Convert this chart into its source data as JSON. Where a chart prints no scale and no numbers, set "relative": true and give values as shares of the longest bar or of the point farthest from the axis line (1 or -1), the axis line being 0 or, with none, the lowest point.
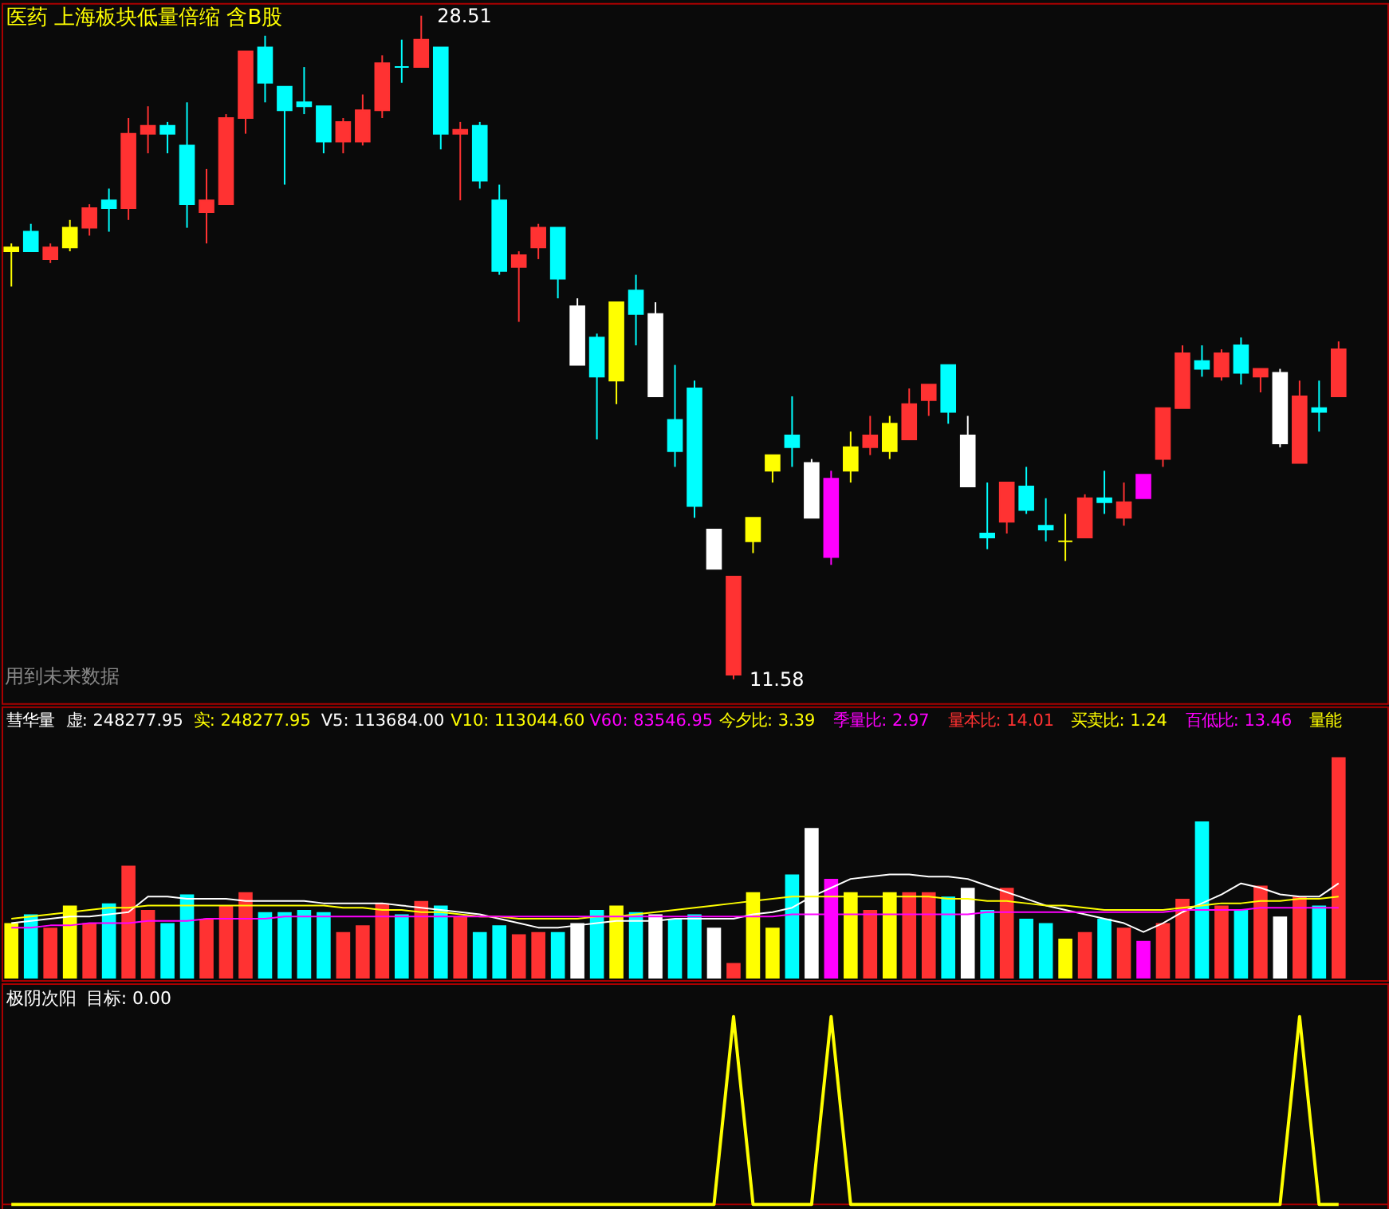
{
  "chart_data": [
    {
      "type": "candlestick",
      "title": "医药 上海板块低量倍缩 含B股",
      "categories": [
        null,
        null,
        null,
        null,
        null,
        null,
        null,
        null,
        null,
        null,
        null,
        null,
        null,
        null,
        null,
        null,
        null,
        null,
        null,
        null,
        null,
        null,
        null,
        null,
        null,
        null,
        null,
        null,
        null,
        null,
        null,
        null,
        null,
        null,
        null,
        null,
        null,
        null,
        null,
        null,
        null,
        null,
        null,
        null,
        null,
        null,
        null,
        null,
        null,
        null,
        null,
        null,
        null,
        null,
        null,
        null,
        null,
        null,
        null,
        null,
        null,
        null,
        null,
        null,
        null,
        null,
        null,
        null,
        null
      ],
      "ohlc": [
        [
          22.6,
          22.7,
          21.6,
          22.5
        ],
        [
          23.0,
          23.2,
          22.5,
          22.5
        ],
        [
          22.3,
          22.7,
          22.2,
          22.6
        ],
        [
          22.6,
          23.3,
          22.5,
          23.1
        ],
        [
          23.1,
          23.7,
          22.9,
          23.6
        ],
        [
          23.8,
          24.1,
          23.0,
          23.6
        ],
        [
          23.6,
          25.9,
          23.3,
          25.5
        ],
        [
          25.5,
          26.2,
          25.0,
          25.7
        ],
        [
          25.7,
          25.8,
          25.0,
          25.5
        ],
        [
          25.2,
          26.3,
          23.1,
          23.7
        ],
        [
          23.5,
          24.6,
          22.7,
          23.8
        ],
        [
          23.7,
          26.0,
          23.7,
          25.9
        ],
        [
          25.9,
          27.6,
          25.5,
          27.6
        ],
        [
          27.7,
          28.0,
          26.3,
          26.8
        ],
        [
          26.7,
          26.7,
          24.2,
          26.1
        ],
        [
          26.3,
          27.2,
          26.0,
          26.2
        ],
        [
          26.2,
          26.2,
          25.0,
          25.3
        ],
        [
          25.3,
          25.9,
          25.0,
          25.8
        ],
        [
          25.3,
          26.5,
          25.2,
          26.1
        ],
        [
          26.1,
          27.5,
          25.9,
          27.3
        ],
        [
          27.2,
          27.9,
          26.8,
          27.2
        ],
        [
          27.2,
          28.51,
          27.2,
          27.9
        ],
        [
          27.7,
          27.7,
          25.1,
          25.5
        ],
        [
          25.5,
          25.8,
          23.8,
          25.6
        ],
        [
          25.7,
          25.8,
          24.1,
          24.3
        ],
        [
          23.8,
          24.2,
          21.9,
          22.0
        ],
        [
          22.1,
          22.5,
          20.7,
          22.4
        ],
        [
          22.6,
          23.2,
          22.3,
          23.1
        ],
        [
          23.1,
          23.1,
          21.3,
          21.8
        ],
        [
          21.1,
          21.3,
          19.6,
          19.6
        ],
        [
          20.3,
          20.4,
          17.7,
          19.3
        ],
        [
          21.2,
          21.2,
          18.6,
          19.2
        ],
        [
          21.5,
          21.9,
          20.1,
          20.9
        ],
        [
          20.9,
          21.2,
          18.8,
          18.8
        ],
        [
          18.2,
          19.6,
          17.0,
          17.4
        ],
        [
          19.0,
          19.2,
          15.7,
          16.0
        ],
        [
          15.4,
          15.4,
          14.4,
          14.4
        ],
        [
          11.7,
          14.2,
          11.58,
          14.2
        ],
        [
          15.7,
          15.7,
          14.8,
          15.1
        ],
        [
          17.3,
          17.3,
          16.6,
          16.9
        ],
        [
          17.8,
          18.8,
          17.0,
          17.5
        ],
        [
          17.1,
          17.2,
          15.7,
          15.7
        ],
        [
          16.7,
          16.9,
          14.5,
          14.7
        ],
        [
          16.9,
          17.9,
          16.6,
          17.5
        ],
        [
          17.5,
          18.3,
          17.3,
          17.8
        ],
        [
          17.4,
          18.3,
          17.2,
          18.1
        ],
        [
          17.7,
          19.0,
          17.7,
          18.6
        ],
        [
          18.7,
          19.1,
          18.3,
          19.1
        ],
        [
          19.6,
          19.6,
          18.1,
          18.4
        ],
        [
          17.8,
          18.3,
          16.5,
          16.5
        ],
        [
          15.3,
          16.6,
          14.9,
          15.2
        ],
        [
          15.6,
          16.6,
          15.3,
          16.6
        ],
        [
          16.5,
          17.0,
          15.8,
          15.9
        ],
        [
          15.5,
          16.2,
          15.1,
          15.4
        ],
        [
          15.1,
          15.8,
          14.6,
          15.1
        ],
        [
          15.2,
          16.3,
          15.2,
          16.2
        ],
        [
          16.2,
          16.9,
          15.8,
          16.1
        ],
        [
          15.7,
          16.6,
          15.5,
          16.1
        ],
        [
          16.2,
          16.8,
          16.2,
          16.8
        ],
        [
          17.2,
          18.5,
          17.0,
          18.5
        ],
        [
          18.5,
          20.1,
          18.5,
          19.9
        ],
        [
          19.7,
          20.1,
          19.3,
          19.5
        ],
        [
          19.3,
          20.0,
          19.2,
          19.9
        ],
        [
          20.1,
          20.3,
          19.1,
          19.4
        ],
        [
          19.3,
          19.5,
          18.9,
          19.5
        ],
        [
          19.4,
          19.5,
          17.5,
          17.6
        ],
        [
          17.1,
          19.2,
          17.1,
          18.8
        ],
        [
          18.5,
          19.2,
          17.9,
          18.4
        ],
        [
          18.8,
          20.2,
          18.8,
          20.0
        ]
      ],
      "colors": [
        "#ffff00",
        "#00ffff",
        "#ff3232",
        "#ffff00",
        "#ff3232",
        "#00ffff",
        "#ff3232",
        "#ff3232",
        "#00ffff",
        "#00ffff",
        "#ff3232",
        "#ff3232",
        "#ff3232",
        "#00ffff",
        "#00ffff",
        "#00ffff",
        "#00ffff",
        "#ff3232",
        "#ff3232",
        "#ff3232",
        "#00ffff",
        "#ff3232",
        "#00ffff",
        "#ff3232",
        "#00ffff",
        "#00ffff",
        "#ff3232",
        "#ff3232",
        "#00ffff",
        "#ffffff",
        "#00ffff",
        "#ffff00",
        "#00ffff",
        "#ffffff",
        "#00ffff",
        "#00ffff",
        "#ffffff",
        "#ff3232",
        "#ffff00",
        "#ffff00",
        "#00ffff",
        "#ffffff",
        "#ff00ff",
        "#ffff00",
        "#ff3232",
        "#ffff00",
        "#ff3232",
        "#ff3232",
        "#00ffff",
        "#ffffff",
        "#00ffff",
        "#ff3232",
        "#00ffff",
        "#00ffff",
        "#ffff00",
        "#ff3232",
        "#00ffff",
        "#ff3232",
        "#ff00ff",
        "#ff3232",
        "#ff3232",
        "#00ffff",
        "#ff3232",
        "#00ffff",
        "#ff3232",
        "#ffffff",
        "#ff3232",
        "#00ffff",
        "#ff3232"
      ],
      "annotations": [
        "用到未来数据",
        "28.51",
        "11.58"
      ]
    },
    {
      "type": "bar",
      "relative": true,
      "title": "彗华量",
      "annotations": [
        "虚: 248277.95",
        "实: 248277.95",
        "V5: 113684.00",
        "V10: 113044.60",
        "V60: 83546.95",
        "今夕比: 3.39",
        "季量比: 2.97",
        "量本比: 14.01",
        "买卖比: 1.24",
        "百低比: 13.46",
        "量能"
      ],
      "categories": [
        null,
        null,
        null,
        null,
        null,
        null,
        null,
        null,
        null,
        null,
        null,
        null,
        null,
        null,
        null,
        null,
        null,
        null,
        null,
        null,
        null,
        null,
        null,
        null,
        null,
        null,
        null,
        null,
        null,
        null,
        null,
        null,
        null,
        null,
        null,
        null,
        null,
        null,
        null,
        null,
        null,
        null,
        null,
        null,
        null,
        null,
        null,
        null,
        null,
        null,
        null,
        null,
        null,
        null,
        null,
        null,
        null,
        null,
        null,
        null,
        null,
        null,
        null,
        null,
        null,
        null,
        null,
        null,
        null
      ],
      "series": [
        {
          "type": "bar",
          "colors": [
            "#ffff00",
            "#00ffff",
            "#ff3232",
            "#ffff00",
            "#ff3232",
            "#00ffff",
            "#ff3232",
            "#ff3232",
            "#00ffff",
            "#00ffff",
            "#ff3232",
            "#ff3232",
            "#ff3232",
            "#00ffff",
            "#00ffff",
            "#00ffff",
            "#00ffff",
            "#ff3232",
            "#ff3232",
            "#ff3232",
            "#00ffff",
            "#ff3232",
            "#00ffff",
            "#ff3232",
            "#00ffff",
            "#00ffff",
            "#ff3232",
            "#ff3232",
            "#00ffff",
            "#ffffff",
            "#00ffff",
            "#ffff00",
            "#00ffff",
            "#ffffff",
            "#00ffff",
            "#00ffff",
            "#ffffff",
            "#ff3232",
            "#ffff00",
            "#ffff00",
            "#00ffff",
            "#ffffff",
            "#ff00ff",
            "#ffff00",
            "#ff3232",
            "#ffff00",
            "#ff3232",
            "#ff3232",
            "#00ffff",
            "#ffffff",
            "#00ffff",
            "#ff3232",
            "#00ffff",
            "#00ffff",
            "#ffff00",
            "#ff3232",
            "#00ffff",
            "#ff3232",
            "#ff00ff",
            "#ff3232",
            "#ff3232",
            "#00ffff",
            "#ff3232",
            "#00ffff",
            "#ff3232",
            "#ffffff",
            "#ff3232",
            "#00ffff",
            "#ff3232"
          ],
          "values": [
            0.25,
            0.29,
            0.23,
            0.33,
            0.25,
            0.34,
            0.51,
            0.31,
            0.25,
            0.38,
            0.27,
            0.33,
            0.39,
            0.3,
            0.3,
            0.31,
            0.3,
            0.21,
            0.24,
            0.34,
            0.29,
            0.35,
            0.33,
            0.28,
            0.21,
            0.24,
            0.2,
            0.21,
            0.21,
            0.25,
            0.31,
            0.33,
            0.3,
            0.29,
            0.27,
            0.29,
            0.23,
            0.07,
            0.39,
            0.23,
            0.47,
            0.68,
            0.45,
            0.39,
            0.31,
            0.39,
            0.39,
            0.39,
            0.37,
            0.41,
            0.31,
            0.41,
            0.27,
            0.25,
            0.18,
            0.21,
            0.27,
            0.23,
            0.17,
            0.25,
            0.36,
            0.71,
            0.33,
            0.31,
            0.42,
            0.28,
            0.37,
            0.33,
            1.0
          ]
        },
        {
          "type": "line",
          "color": "#ffffff",
          "values": [
            0.25,
            0.26,
            0.27,
            0.28,
            0.28,
            0.29,
            0.3,
            0.37,
            0.37,
            0.36,
            0.36,
            0.36,
            0.35,
            0.35,
            0.35,
            0.35,
            0.34,
            0.34,
            0.34,
            0.34,
            0.33,
            0.32,
            0.31,
            0.3,
            0.29,
            0.27,
            0.25,
            0.23,
            0.23,
            0.24,
            0.25,
            0.26,
            0.26,
            0.26,
            0.27,
            0.27,
            0.27,
            0.27,
            0.29,
            0.3,
            0.32,
            0.37,
            0.41,
            0.45,
            0.46,
            0.47,
            0.47,
            0.46,
            0.46,
            0.45,
            0.42,
            0.39,
            0.36,
            0.33,
            0.31,
            0.29,
            0.27,
            0.25,
            0.21,
            0.25,
            0.3,
            0.34,
            0.38,
            0.43,
            0.41,
            0.38,
            0.37,
            0.37,
            0.43
          ]
        },
        {
          "type": "line",
          "color": "#ffff00",
          "values": [
            0.27,
            0.28,
            0.29,
            0.3,
            0.31,
            0.32,
            0.32,
            0.33,
            0.33,
            0.33,
            0.33,
            0.33,
            0.33,
            0.33,
            0.33,
            0.33,
            0.33,
            0.32,
            0.32,
            0.31,
            0.31,
            0.3,
            0.3,
            0.29,
            0.28,
            0.28,
            0.27,
            0.27,
            0.27,
            0.27,
            0.28,
            0.28,
            0.29,
            0.3,
            0.31,
            0.32,
            0.33,
            0.34,
            0.35,
            0.36,
            0.37,
            0.37,
            0.37,
            0.37,
            0.37,
            0.37,
            0.37,
            0.37,
            0.36,
            0.36,
            0.35,
            0.35,
            0.34,
            0.33,
            0.33,
            0.32,
            0.31,
            0.31,
            0.31,
            0.31,
            0.32,
            0.33,
            0.34,
            0.34,
            0.35,
            0.35,
            0.36,
            0.36,
            0.37
          ]
        },
        {
          "type": "line",
          "color": "#ff00ff",
          "values": [
            0.23,
            0.23,
            0.24,
            0.24,
            0.25,
            0.25,
            0.25,
            0.26,
            0.26,
            0.26,
            0.27,
            0.27,
            0.27,
            0.27,
            0.28,
            0.28,
            0.28,
            0.28,
            0.28,
            0.28,
            0.28,
            0.28,
            0.28,
            0.28,
            0.28,
            0.28,
            0.28,
            0.28,
            0.28,
            0.28,
            0.28,
            0.28,
            0.28,
            0.28,
            0.28,
            0.28,
            0.28,
            0.28,
            0.28,
            0.28,
            0.29,
            0.29,
            0.29,
            0.29,
            0.29,
            0.29,
            0.29,
            0.29,
            0.29,
            0.29,
            0.3,
            0.3,
            0.3,
            0.3,
            0.3,
            0.3,
            0.3,
            0.3,
            0.3,
            0.3,
            0.31,
            0.31,
            0.31,
            0.31,
            0.32,
            0.32,
            0.32,
            0.32,
            0.32
          ]
        }
      ]
    },
    {
      "type": "line",
      "relative": true,
      "title": "极阴次阳",
      "annotations": [
        "目标: 0.00"
      ],
      "categories": [
        null,
        null,
        null,
        null,
        null,
        null,
        null,
        null,
        null,
        null,
        null,
        null,
        null,
        null,
        null,
        null,
        null,
        null,
        null,
        null,
        null,
        null,
        null,
        null,
        null,
        null,
        null,
        null,
        null,
        null,
        null,
        null,
        null,
        null,
        null,
        null,
        null,
        null,
        null,
        null,
        null,
        null,
        null,
        null,
        null,
        null,
        null,
        null,
        null,
        null,
        null,
        null,
        null,
        null,
        null,
        null,
        null,
        null,
        null,
        null,
        null,
        null,
        null,
        null,
        null,
        null,
        null,
        null,
        null
      ],
      "series": [
        {
          "color": "#ffff00",
          "values": [
            0,
            0,
            0,
            0,
            0,
            0,
            0,
            0,
            0,
            0,
            0,
            0,
            0,
            0,
            0,
            0,
            0,
            0,
            0,
            0,
            0,
            0,
            0,
            0,
            0,
            0,
            0,
            0,
            0,
            0,
            0,
            0,
            0,
            0,
            0,
            0,
            0,
            1,
            0,
            0,
            0,
            0,
            1,
            0,
            0,
            0,
            0,
            0,
            0,
            0,
            0,
            0,
            0,
            0,
            0,
            0,
            0,
            0,
            0,
            0,
            0,
            0,
            0,
            0,
            0,
            0,
            1,
            0,
            0
          ]
        }
      ]
    }
  ]
}
